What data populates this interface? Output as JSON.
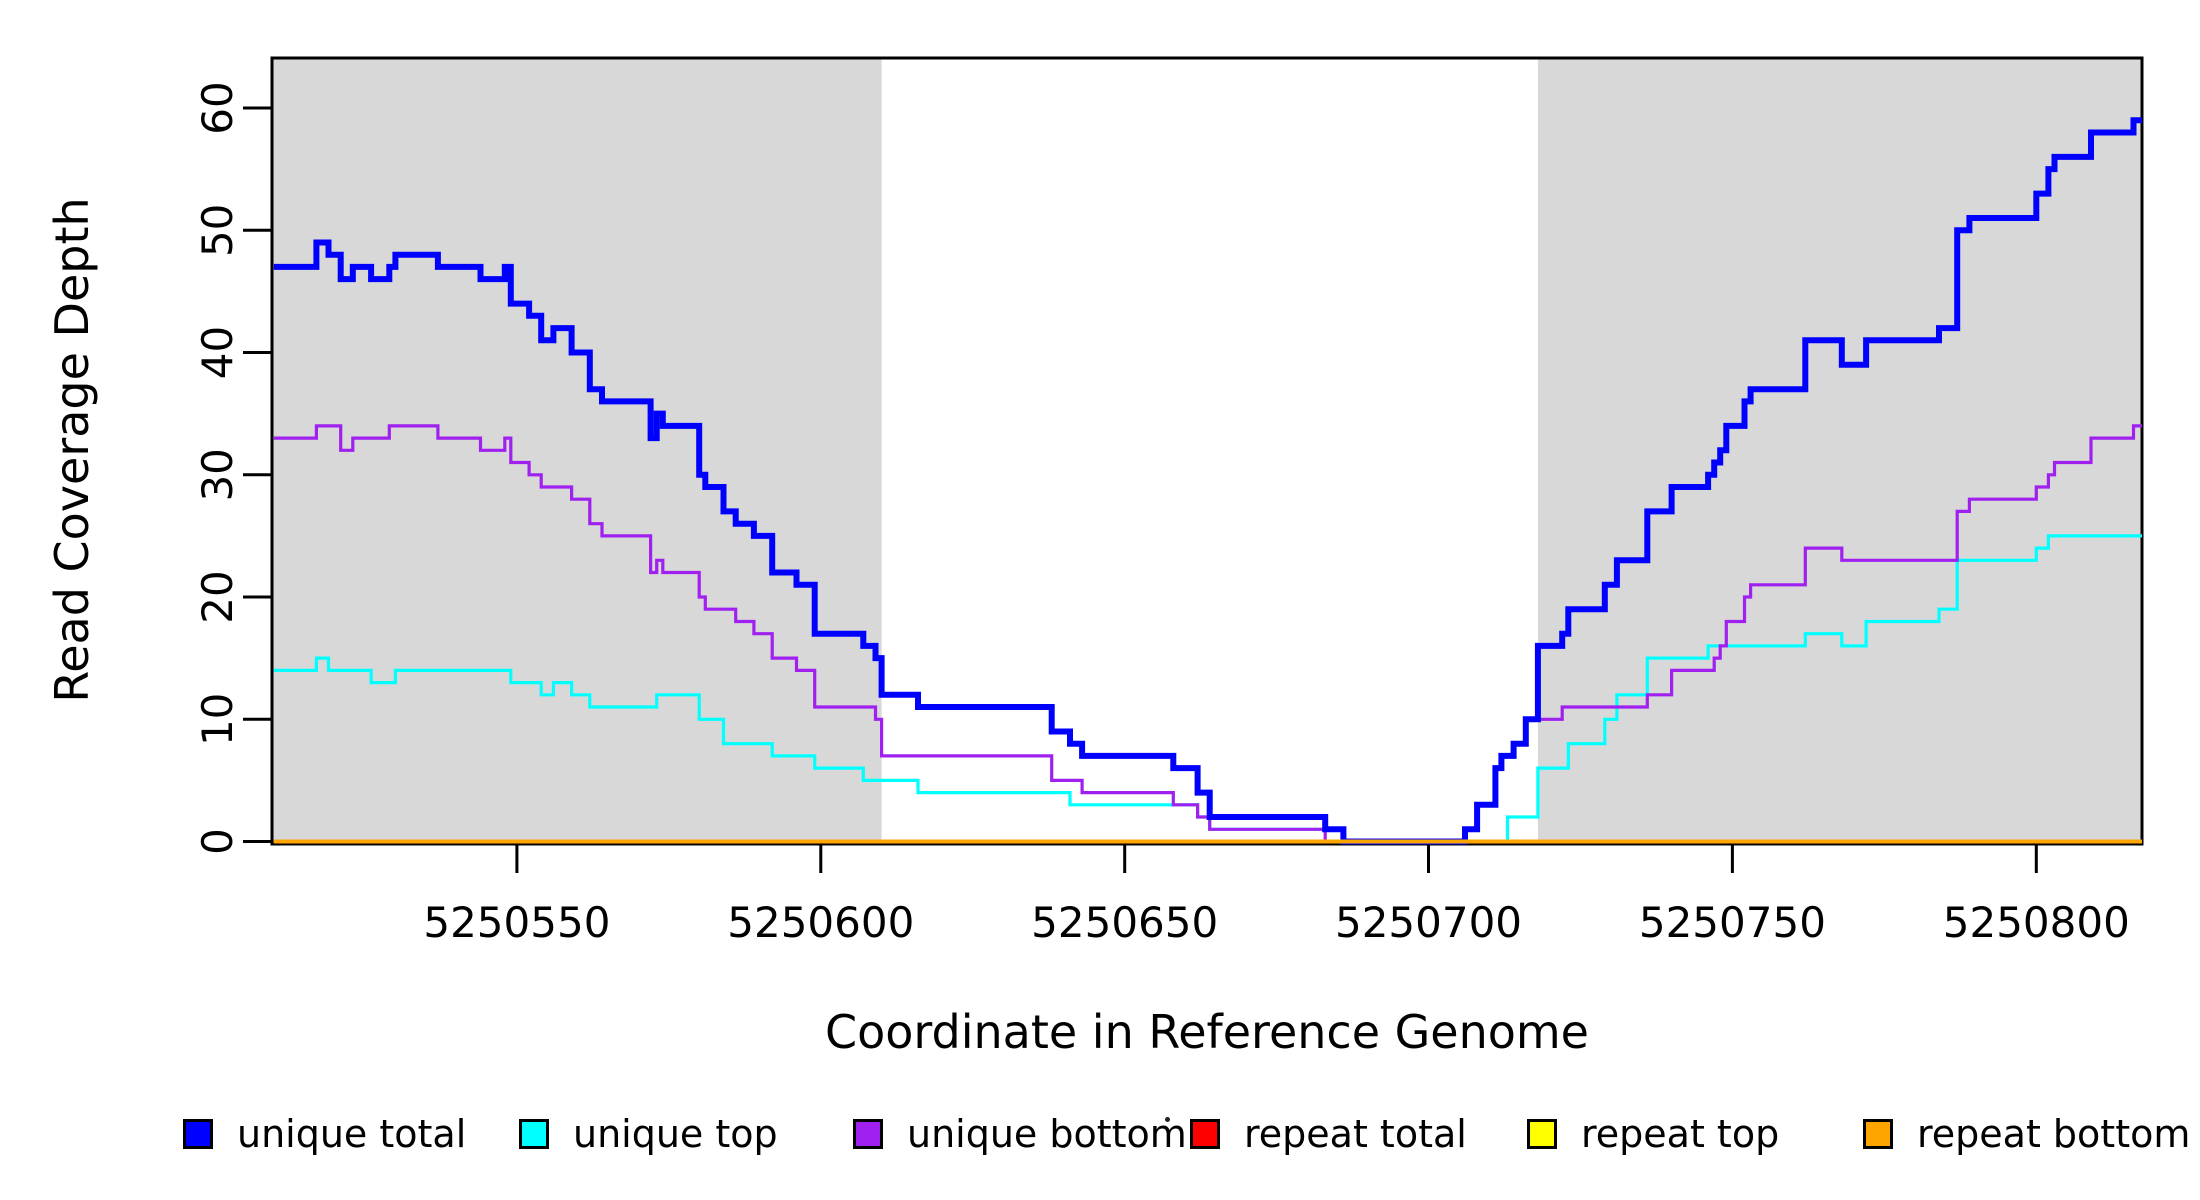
{
  "figure": {
    "x_axis_title": "Coordinate in Reference Genome",
    "y_axis_title": "Read Coverage Depth"
  },
  "chart_data": {
    "type": "line",
    "line_style": "step",
    "title": "",
    "xlabel": "Coordinate in Reference Genome",
    "ylabel": "Read Coverage Depth",
    "xlim": [
      5250509.7,
      5250817.4
    ],
    "ylim": [
      0,
      64.1
    ],
    "grid": false,
    "x_ticks": [
      5250550,
      5250600,
      5250650,
      5250700,
      5250750,
      5250800
    ],
    "y_ticks": [
      0,
      10,
      20,
      30,
      40,
      50,
      60
    ],
    "y_tick_labels_rotated": true,
    "background_color": "#ffffff",
    "highlight_regions": [
      {
        "name": "left-unique-region",
        "start": 5250509.7,
        "end": 5250610,
        "color": "#D8D8D8"
      },
      {
        "name": "right-unique-region",
        "start": 5250718,
        "end": 5250817.4,
        "color": "#D8D8D8"
      }
    ],
    "legend": {
      "position": "bottom",
      "entries": [
        {
          "label": "unique total",
          "color": "#0000FF"
        },
        {
          "label": "unique top",
          "color": "#00FFFF"
        },
        {
          "label": "unique bottom",
          "color": "#A020F0"
        },
        {
          "label": "repeat total",
          "color": "#FF0000"
        },
        {
          "label": "repeat top",
          "color": "#FFFF00"
        },
        {
          "label": "repeat bottom",
          "color": "#FFA500"
        }
      ]
    },
    "series": [
      {
        "name": "unique top",
        "color": "#00FFFF",
        "line_width": 3.2,
        "points": [
          [
            5250510,
            14
          ],
          [
            5250517,
            15
          ],
          [
            5250519,
            14
          ],
          [
            5250526,
            13
          ],
          [
            5250530,
            14
          ],
          [
            5250549,
            13
          ],
          [
            5250554,
            12
          ],
          [
            5250556,
            13
          ],
          [
            5250559,
            12
          ],
          [
            5250562,
            11
          ],
          [
            5250573,
            12
          ],
          [
            5250580,
            10
          ],
          [
            5250584,
            8
          ],
          [
            5250592,
            7
          ],
          [
            5250599,
            6
          ],
          [
            5250607,
            5
          ],
          [
            5250616,
            4
          ],
          [
            5250641,
            3
          ],
          [
            5250662,
            2
          ],
          [
            5250664,
            1
          ],
          [
            5250686,
            0
          ],
          [
            5250713,
            2
          ],
          [
            5250718,
            6
          ],
          [
            5250723,
            8
          ],
          [
            5250729,
            10
          ],
          [
            5250731,
            12
          ],
          [
            5250736,
            15
          ],
          [
            5250746,
            16
          ],
          [
            5250762,
            17
          ],
          [
            5250768,
            16
          ],
          [
            5250772,
            18
          ],
          [
            5250784,
            19
          ],
          [
            5250787,
            23
          ],
          [
            5250800,
            24
          ],
          [
            5250802,
            25
          ]
        ]
      },
      {
        "name": "unique bottom",
        "color": "#A020F0",
        "line_width": 3.2,
        "points": [
          [
            5250510,
            33
          ],
          [
            5250517,
            34
          ],
          [
            5250521,
            32
          ],
          [
            5250523,
            33
          ],
          [
            5250529,
            34
          ],
          [
            5250537,
            33
          ],
          [
            5250544,
            32
          ],
          [
            5250548,
            33
          ],
          [
            5250549,
            31
          ],
          [
            5250552,
            30
          ],
          [
            5250554,
            29
          ],
          [
            5250559,
            28
          ],
          [
            5250562,
            26
          ],
          [
            5250564,
            25
          ],
          [
            5250572,
            22
          ],
          [
            5250573,
            23
          ],
          [
            5250574,
            22
          ],
          [
            5250580,
            20
          ],
          [
            5250581,
            19
          ],
          [
            5250586,
            18
          ],
          [
            5250589,
            17
          ],
          [
            5250592,
            15
          ],
          [
            5250596,
            14
          ],
          [
            5250599,
            11
          ],
          [
            5250609,
            10
          ],
          [
            5250610,
            7
          ],
          [
            5250638,
            5
          ],
          [
            5250643,
            4
          ],
          [
            5250658,
            3
          ],
          [
            5250662,
            2
          ],
          [
            5250664,
            1
          ],
          [
            5250683,
            0
          ],
          [
            5250706,
            1
          ],
          [
            5250708,
            3
          ],
          [
            5250711,
            6
          ],
          [
            5250712,
            7
          ],
          [
            5250714,
            8
          ],
          [
            5250716,
            10
          ],
          [
            5250722,
            11
          ],
          [
            5250736,
            12
          ],
          [
            5250740,
            14
          ],
          [
            5250747,
            15
          ],
          [
            5250748,
            16
          ],
          [
            5250749,
            18
          ],
          [
            5250752,
            20
          ],
          [
            5250753,
            21
          ],
          [
            5250762,
            24
          ],
          [
            5250768,
            23
          ],
          [
            5250787,
            27
          ],
          [
            5250789,
            28
          ],
          [
            5250800,
            29
          ],
          [
            5250802,
            30
          ],
          [
            5250803,
            31
          ],
          [
            5250809,
            33
          ],
          [
            5250816,
            34
          ]
        ]
      },
      {
        "name": "unique total",
        "color": "#0000FF",
        "line_width": 6,
        "points": [
          [
            5250510,
            47
          ],
          [
            5250517,
            49
          ],
          [
            5250519,
            48
          ],
          [
            5250521,
            46
          ],
          [
            5250523,
            47
          ],
          [
            5250526,
            46
          ],
          [
            5250529,
            47
          ],
          [
            5250530,
            48
          ],
          [
            5250537,
            47
          ],
          [
            5250544,
            46
          ],
          [
            5250548,
            47
          ],
          [
            5250549,
            44
          ],
          [
            5250552,
            43
          ],
          [
            5250554,
            41
          ],
          [
            5250556,
            42
          ],
          [
            5250559,
            40
          ],
          [
            5250562,
            37
          ],
          [
            5250564,
            36
          ],
          [
            5250572,
            33
          ],
          [
            5250573,
            35
          ],
          [
            5250574,
            34
          ],
          [
            5250580,
            30
          ],
          [
            5250581,
            29
          ],
          [
            5250584,
            27
          ],
          [
            5250586,
            26
          ],
          [
            5250589,
            25
          ],
          [
            5250592,
            22
          ],
          [
            5250596,
            21
          ],
          [
            5250599,
            17
          ],
          [
            5250607,
            16
          ],
          [
            5250609,
            15
          ],
          [
            5250610,
            12
          ],
          [
            5250616,
            11
          ],
          [
            5250638,
            9
          ],
          [
            5250641,
            8
          ],
          [
            5250643,
            7
          ],
          [
            5250658,
            6
          ],
          [
            5250662,
            4
          ],
          [
            5250664,
            2
          ],
          [
            5250683,
            1
          ],
          [
            5250686,
            0
          ],
          [
            5250706,
            1
          ],
          [
            5250708,
            3
          ],
          [
            5250711,
            6
          ],
          [
            5250712,
            7
          ],
          [
            5250714,
            8
          ],
          [
            5250716,
            10
          ],
          [
            5250718,
            16
          ],
          [
            5250722,
            17
          ],
          [
            5250723,
            19
          ],
          [
            5250729,
            21
          ],
          [
            5250731,
            23
          ],
          [
            5250736,
            27
          ],
          [
            5250740,
            29
          ],
          [
            5250746,
            30
          ],
          [
            5250747,
            31
          ],
          [
            5250748,
            32
          ],
          [
            5250749,
            34
          ],
          [
            5250752,
            36
          ],
          [
            5250753,
            37
          ],
          [
            5250762,
            41
          ],
          [
            5250768,
            39
          ],
          [
            5250772,
            41
          ],
          [
            5250784,
            42
          ],
          [
            5250787,
            50
          ],
          [
            5250789,
            51
          ],
          [
            5250800,
            53
          ],
          [
            5250802,
            55
          ],
          [
            5250803,
            56
          ],
          [
            5250809,
            58
          ],
          [
            5250816,
            59
          ]
        ]
      },
      {
        "name": "repeat total",
        "color": "#FF0000",
        "line_width": 3,
        "points": [
          [
            5250510,
            0
          ]
        ]
      },
      {
        "name": "repeat top",
        "color": "#FFFF00",
        "line_width": 3,
        "points": [
          [
            5250510,
            0
          ]
        ]
      },
      {
        "name": "repeat bottom",
        "color": "#FFA500",
        "line_width": 4,
        "points": [
          [
            5250510,
            0
          ]
        ]
      }
    ]
  }
}
